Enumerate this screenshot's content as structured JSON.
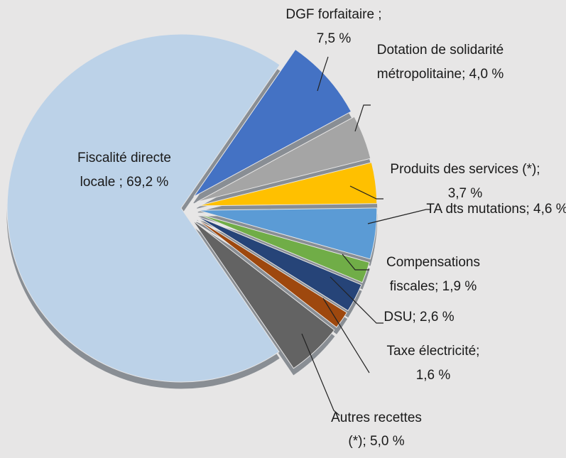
{
  "chart_data": {
    "type": "pie",
    "categories": [
      "DGF forfaitaire ;",
      "Dotation de solidarité métropolitaine;",
      "Produits des services (*);",
      "TA dts mutations;",
      "Compensations fiscales;",
      "DSU;",
      "Taxe électricité;",
      "Autres recettes (*);",
      "Fiscalité directe locale ;"
    ],
    "values": [
      7.5,
      4.0,
      3.7,
      4.6,
      1.9,
      2.6,
      1.6,
      5.0,
      69.2
    ],
    "value_labels": [
      "7,5 %",
      "4,0 %",
      "3,7 %",
      "4,6 %",
      "1,9 %",
      "2,6 %",
      "1,6 %",
      "5,0 %",
      "69,2 %"
    ],
    "colors": [
      "#4472c4",
      "#a5a5a5",
      "#ffc000",
      "#5b9bd5",
      "#70ad47",
      "#264478",
      "#9e480e",
      "#636363",
      "#bcd2e8"
    ]
  }
}
